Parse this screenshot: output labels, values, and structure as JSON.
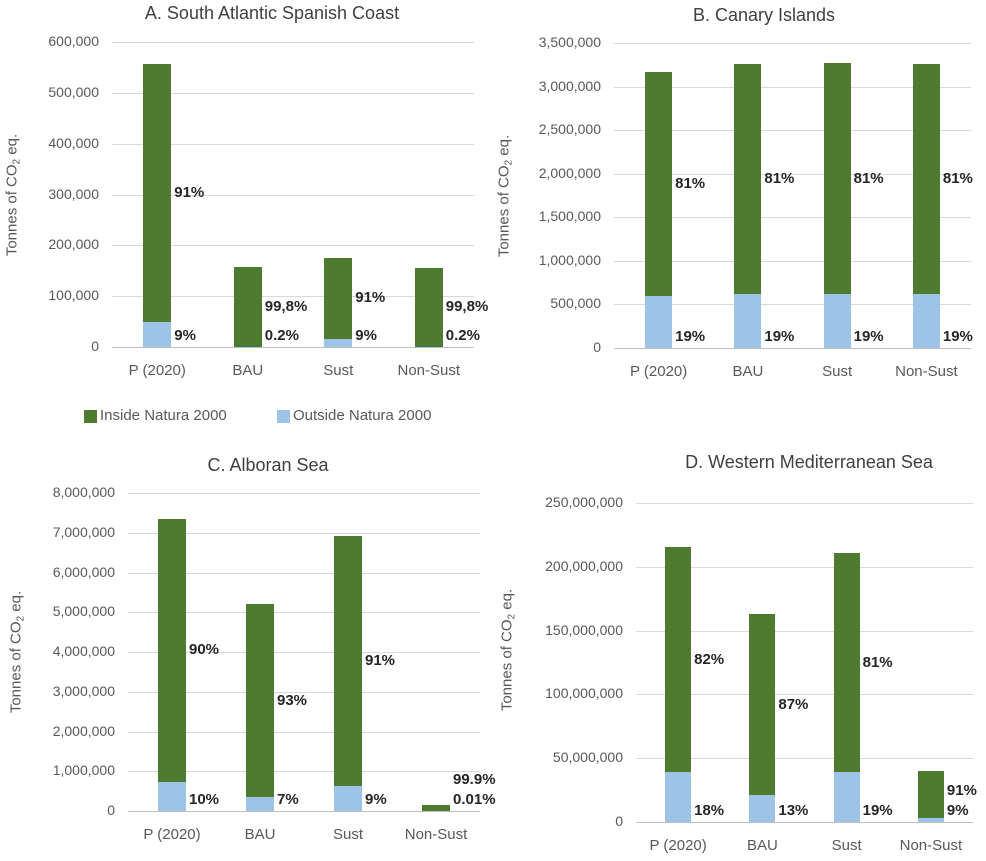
{
  "figure": {
    "y_axis_title": {
      "prefix": "Tonnes of CO",
      "sub": "2",
      "suffix": " eq."
    },
    "colors": {
      "inside_natura": "#4e7b2f",
      "outside_natura": "#9dc3e6",
      "gridline": "#d9d9d9",
      "axis_line": "#bfbfbf",
      "tick_text": "#595959",
      "title_text": "#404040",
      "data_label_text": "#262626"
    }
  },
  "legend": {
    "position": "below-chart-A",
    "items": [
      {
        "label": "Inside Natura 2000",
        "color_key": "inside_natura"
      },
      {
        "label": "Outside Natura 2000",
        "color_key": "outside_natura"
      }
    ]
  },
  "chart_data": [
    {
      "id": "A",
      "type": "bar",
      "stacked": true,
      "grid": true,
      "title": "A. South Atlantic Spanish Coast",
      "ylabel": "Tonnes of CO2 eq.",
      "ylim": [
        0,
        600000
      ],
      "yticks": [
        {
          "value": 0,
          "label": "0"
        },
        {
          "value": 100000,
          "label": "100,000"
        },
        {
          "value": 200000,
          "label": "200,000"
        },
        {
          "value": 300000,
          "label": "300,000"
        },
        {
          "value": 400000,
          "label": "400,000"
        },
        {
          "value": 500000,
          "label": "500,000"
        },
        {
          "value": 600000,
          "label": "600,000"
        }
      ],
      "categories": [
        "P (2020)",
        "BAU",
        "Sust",
        "Non-Sust"
      ],
      "series": [
        {
          "name": "Outside Natura 2000",
          "values": [
            50000,
            300,
            16000,
            300
          ],
          "data_labels": [
            "9%",
            "0.2%",
            "9%",
            "0.2%"
          ]
        },
        {
          "name": "Inside Natura 2000",
          "values": [
            507000,
            156500,
            160000,
            155500
          ],
          "data_labels": [
            "91%",
            "99,8%",
            "91%",
            "99,8%"
          ]
        }
      ]
    },
    {
      "id": "B",
      "type": "bar",
      "stacked": true,
      "grid": true,
      "title": "B. Canary Islands",
      "ylabel": "Tonnes of CO2 eq.",
      "ylim": [
        0,
        3500000
      ],
      "yticks": [
        {
          "value": 0,
          "label": "0"
        },
        {
          "value": 500000,
          "label": "500,000"
        },
        {
          "value": 1000000,
          "label": "1,000,000"
        },
        {
          "value": 1500000,
          "label": "1,500,000"
        },
        {
          "value": 2000000,
          "label": "2,000,000"
        },
        {
          "value": 2500000,
          "label": "2,500,000"
        },
        {
          "value": 3000000,
          "label": "3,000,000"
        },
        {
          "value": 3500000,
          "label": "3,500,000"
        }
      ],
      "categories": [
        "P (2020)",
        "BAU",
        "Sust",
        "Non-Sust"
      ],
      "series": [
        {
          "name": "Outside Natura 2000",
          "values": [
            600000,
            620000,
            620000,
            615000
          ],
          "data_labels": [
            "19%",
            "19%",
            "19%",
            "19%"
          ]
        },
        {
          "name": "Inside Natura 2000",
          "values": [
            2570000,
            2640000,
            2650000,
            2640000
          ],
          "data_labels": [
            "81%",
            "81%",
            "81%",
            "81%"
          ]
        }
      ]
    },
    {
      "id": "C",
      "type": "bar",
      "stacked": true,
      "grid": true,
      "title": "C. Alboran Sea",
      "ylabel": "Tonnes of CO2 eq.",
      "ylim": [
        0,
        8000000
      ],
      "yticks": [
        {
          "value": 0,
          "label": "0"
        },
        {
          "value": 1000000,
          "label": "1,000,000"
        },
        {
          "value": 2000000,
          "label": "2,000,000"
        },
        {
          "value": 3000000,
          "label": "3,000,000"
        },
        {
          "value": 4000000,
          "label": "4,000,000"
        },
        {
          "value": 5000000,
          "label": "5,000,000"
        },
        {
          "value": 6000000,
          "label": "6,000,000"
        },
        {
          "value": 7000000,
          "label": "7,000,000"
        },
        {
          "value": 8000000,
          "label": "8,000,000"
        }
      ],
      "categories": [
        "P (2020)",
        "BAU",
        "Sust",
        "Non-Sust"
      ],
      "series": [
        {
          "name": "Outside Natura 2000",
          "values": [
            730000,
            350000,
            620000,
            15
          ],
          "data_labels": [
            "10%",
            "7%",
            "9%",
            "0.01%"
          ]
        },
        {
          "name": "Inside Natura 2000",
          "values": [
            6620000,
            4850000,
            6310000,
            145000
          ],
          "data_labels": [
            "90%",
            "93%",
            "91%",
            "99.9%"
          ]
        }
      ]
    },
    {
      "id": "D",
      "type": "bar",
      "stacked": true,
      "grid": true,
      "title": "D. Western Mediterranean Sea",
      "ylabel": "Tonnes of CO2 eq.",
      "ylim": [
        0,
        250000000
      ],
      "yticks": [
        {
          "value": 0,
          "label": "0"
        },
        {
          "value": 50000000,
          "label": "50,000,000"
        },
        {
          "value": 100000000,
          "label": "100,000,000"
        },
        {
          "value": 150000000,
          "label": "150,000,000"
        },
        {
          "value": 200000000,
          "label": "200,000,000"
        },
        {
          "value": 250000000,
          "label": "250,000,000"
        }
      ],
      "categories": [
        "P (2020)",
        "BAU",
        "Sust",
        "Non-Sust"
      ],
      "series": [
        {
          "name": "Outside Natura 2000",
          "values": [
            39000000,
            21000000,
            39000000,
            3500000
          ],
          "data_labels": [
            "18%",
            "13%",
            "19%",
            "9%"
          ]
        },
        {
          "name": "Inside Natura 2000",
          "values": [
            176500000,
            142000000,
            171500000,
            36500000
          ],
          "data_labels": [
            "82%",
            "87%",
            "81%",
            "91%"
          ]
        }
      ]
    }
  ]
}
